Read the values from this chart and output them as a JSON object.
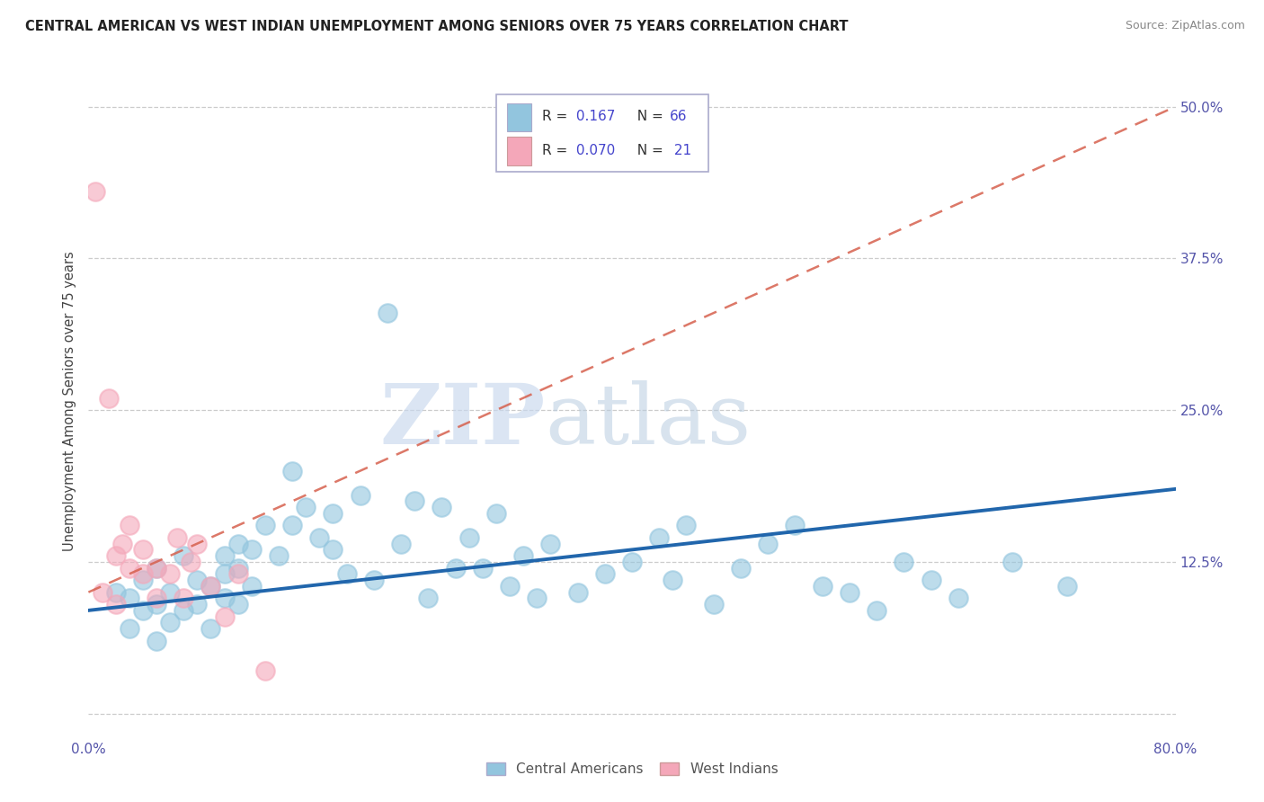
{
  "title": "CENTRAL AMERICAN VS WEST INDIAN UNEMPLOYMENT AMONG SENIORS OVER 75 YEARS CORRELATION CHART",
  "source": "Source: ZipAtlas.com",
  "ylabel": "Unemployment Among Seniors over 75 years",
  "xlim": [
    0.0,
    0.8
  ],
  "ylim": [
    -0.02,
    0.535
  ],
  "blue_color": "#92c5de",
  "pink_color": "#f4a7b9",
  "blue_line_color": "#2166ac",
  "pink_line_color": "#d6604d",
  "watermark_zip": "ZIP",
  "watermark_atlas": "atlas",
  "legend_r_blue": "R=  0.167",
  "legend_n_blue": "N = 66",
  "legend_r_pink": "R=  0.070",
  "legend_n_pink": "N =  21",
  "blue_scatter_x": [
    0.02,
    0.03,
    0.03,
    0.04,
    0.04,
    0.05,
    0.05,
    0.05,
    0.06,
    0.06,
    0.07,
    0.07,
    0.08,
    0.08,
    0.09,
    0.09,
    0.1,
    0.1,
    0.1,
    0.11,
    0.11,
    0.11,
    0.12,
    0.12,
    0.13,
    0.14,
    0.15,
    0.15,
    0.16,
    0.17,
    0.18,
    0.18,
    0.19,
    0.2,
    0.21,
    0.22,
    0.23,
    0.24,
    0.25,
    0.26,
    0.27,
    0.28,
    0.29,
    0.3,
    0.31,
    0.32,
    0.33,
    0.34,
    0.36,
    0.38,
    0.4,
    0.42,
    0.43,
    0.44,
    0.46,
    0.48,
    0.5,
    0.52,
    0.54,
    0.56,
    0.58,
    0.6,
    0.62,
    0.64,
    0.68,
    0.72
  ],
  "blue_scatter_y": [
    0.1,
    0.07,
    0.095,
    0.085,
    0.11,
    0.06,
    0.09,
    0.12,
    0.075,
    0.1,
    0.085,
    0.13,
    0.09,
    0.11,
    0.07,
    0.105,
    0.095,
    0.115,
    0.13,
    0.09,
    0.12,
    0.14,
    0.105,
    0.135,
    0.155,
    0.13,
    0.2,
    0.155,
    0.17,
    0.145,
    0.135,
    0.165,
    0.115,
    0.18,
    0.11,
    0.33,
    0.14,
    0.175,
    0.095,
    0.17,
    0.12,
    0.145,
    0.12,
    0.165,
    0.105,
    0.13,
    0.095,
    0.14,
    0.1,
    0.115,
    0.125,
    0.145,
    0.11,
    0.155,
    0.09,
    0.12,
    0.14,
    0.155,
    0.105,
    0.1,
    0.085,
    0.125,
    0.11,
    0.095,
    0.125,
    0.105
  ],
  "pink_scatter_x": [
    0.005,
    0.01,
    0.015,
    0.02,
    0.02,
    0.025,
    0.03,
    0.03,
    0.04,
    0.04,
    0.05,
    0.05,
    0.06,
    0.065,
    0.07,
    0.075,
    0.08,
    0.09,
    0.1,
    0.11,
    0.13
  ],
  "pink_scatter_y": [
    0.43,
    0.1,
    0.26,
    0.09,
    0.13,
    0.14,
    0.12,
    0.155,
    0.115,
    0.135,
    0.12,
    0.095,
    0.115,
    0.145,
    0.095,
    0.125,
    0.14,
    0.105,
    0.08,
    0.115,
    0.035
  ],
  "blue_trend_x": [
    0.0,
    0.8
  ],
  "blue_trend_y": [
    0.085,
    0.185
  ],
  "pink_trend_x": [
    0.0,
    0.8
  ],
  "pink_trend_y": [
    0.1,
    0.5
  ]
}
